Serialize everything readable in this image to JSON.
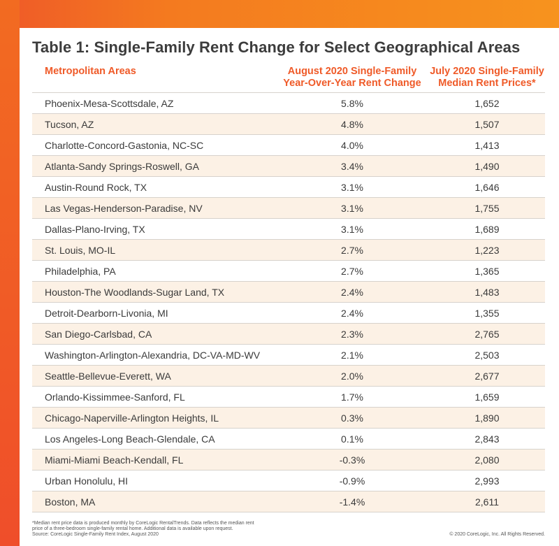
{
  "colors": {
    "accent": "#ef5a28",
    "band_orange": "#f7931e",
    "row_alt": "#fcf1e5"
  },
  "title": "Table 1: Single-Family Rent Change for Select Geographical Areas",
  "table": {
    "headers": {
      "area": "Metropolitan Areas",
      "change_line1": "August 2020 Single-Family",
      "change_line2": "Year-Over-Year Rent Change",
      "price_line1": "July 2020 Single-Family",
      "price_line2": "Median Rent Prices*"
    },
    "rows": [
      [
        "Phoenix-Mesa-Scottsdale, AZ",
        "5.8%",
        "1,652"
      ],
      [
        "Tucson, AZ",
        "4.8%",
        "1,507"
      ],
      [
        "Charlotte-Concord-Gastonia, NC-SC",
        "4.0%",
        "1,413"
      ],
      [
        "Atlanta-Sandy Springs-Roswell, GA",
        "3.4%",
        "1,490"
      ],
      [
        "Austin-Round Rock, TX",
        "3.1%",
        "1,646"
      ],
      [
        "Las Vegas-Henderson-Paradise, NV",
        "3.1%",
        "1,755"
      ],
      [
        "Dallas-Plano-Irving, TX",
        "3.1%",
        "1,689"
      ],
      [
        "St. Louis, MO-IL",
        "2.7%",
        "1,223"
      ],
      [
        "Philadelphia, PA",
        "2.7%",
        "1,365"
      ],
      [
        "Houston-The Woodlands-Sugar Land, TX",
        "2.4%",
        "1,483"
      ],
      [
        "Detroit-Dearborn-Livonia, MI",
        "2.4%",
        "1,355"
      ],
      [
        "San Diego-Carlsbad, CA",
        "2.3%",
        "2,765"
      ],
      [
        "Washington-Arlington-Alexandria, DC-VA-MD-WV",
        "2.1%",
        "2,503"
      ],
      [
        "Seattle-Bellevue-Everett, WA",
        "2.0%",
        "2,677"
      ],
      [
        "Orlando-Kissimmee-Sanford, FL",
        "1.7%",
        "1,659"
      ],
      [
        "Chicago-Naperville-Arlington Heights, IL",
        "0.3%",
        "1,890"
      ],
      [
        "Los Angeles-Long Beach-Glendale, CA",
        "0.1%",
        "2,843"
      ],
      [
        "Miami-Miami Beach-Kendall, FL",
        "-0.3%",
        "2,080"
      ],
      [
        "Urban Honolulu, HI",
        "-0.9%",
        "2,993"
      ],
      [
        "Boston, MA",
        "-1.4%",
        "2,611"
      ]
    ]
  },
  "footnote": {
    "line1": "*Median rent price data is produced monthly by CoreLogic RentalTrends. Data reflects the median rent",
    "line2": "price of a three-bedroom single-family rental home. Additional data is available upon request.",
    "line3": "Source: CoreLogic Single-Family Rent Index, August 2020"
  },
  "copyright": "© 2020 CoreLogic, Inc. All Rights Reserved."
}
